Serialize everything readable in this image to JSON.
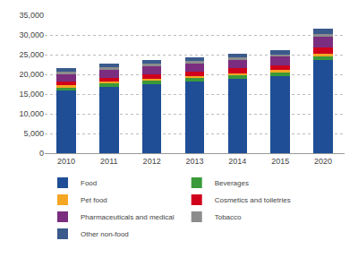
{
  "chart_data": {
    "type": "bar",
    "stacked": true,
    "grid": true,
    "legend": "bottom",
    "categories": [
      "2010",
      "2011",
      "2012",
      "2013",
      "2014",
      "2015",
      "2020"
    ],
    "series": [
      {
        "name": "Food",
        "color": "#1f4e96",
        "values": [
          16000,
          16900,
          17600,
          18200,
          18900,
          19600,
          23600
        ]
      },
      {
        "name": "Beverages",
        "color": "#3a9a3a",
        "values": [
          700,
          720,
          750,
          780,
          800,
          830,
          1000
        ]
      },
      {
        "name": "Pet food",
        "color": "#f5a623",
        "values": [
          500,
          520,
          540,
          560,
          580,
          600,
          700
        ]
      },
      {
        "name": "Cosmetics and toiletries",
        "color": "#d0021b",
        "values": [
          1000,
          1050,
          1100,
          1150,
          1200,
          1250,
          1500
        ]
      },
      {
        "name": "Pharmaceuticals and medical",
        "color": "#7b2d7f",
        "values": [
          1900,
          2000,
          2050,
          2100,
          2150,
          2200,
          2800
        ]
      },
      {
        "name": "Tobacco",
        "color": "#8c8c8c",
        "values": [
          600,
          600,
          600,
          600,
          600,
          600,
          600
        ]
      },
      {
        "name": "Other non-food",
        "color": "#3a5a8c",
        "values": [
          1000,
          910,
          960,
          1010,
          970,
          1020,
          1300
        ]
      }
    ],
    "ylim": [
      0,
      35000
    ],
    "yticks": [
      0,
      {
        "value": 5000,
        "label": "5,000"
      },
      {
        "value": 10000,
        "label": "10,000"
      },
      {
        "value": 15000,
        "label": "15,000"
      },
      {
        "value": 20000,
        "label": "20,000"
      },
      {
        "value": 25000,
        "label": "25,000"
      },
      {
        "value": 30000,
        "label": "30,000"
      },
      {
        "value": 35000,
        "label": "35,000"
      }
    ]
  }
}
